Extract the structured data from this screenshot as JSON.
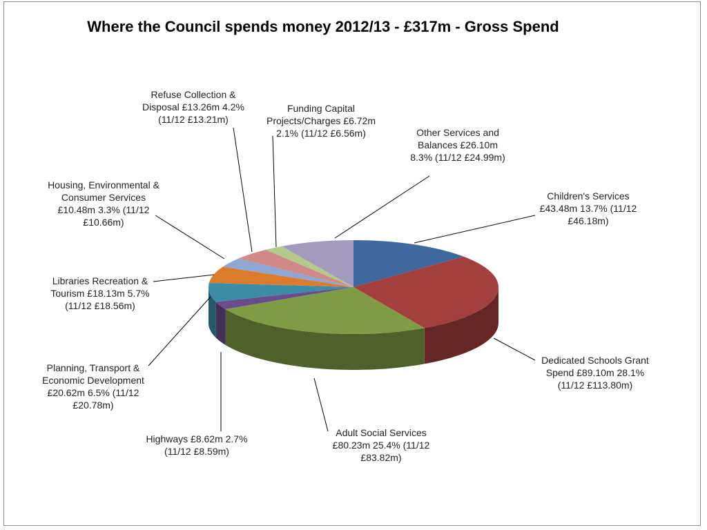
{
  "chart_data": {
    "type": "pie",
    "title": "Where the Council spends money 2012/13 - £317m - Gross Spend",
    "categories": [
      "Children's Services",
      "Dedicated Schools Grant Spend",
      "Adult Social Services",
      "Highways",
      "Planning, Transport & Economic Development",
      "Libraries Recreation & Tourism",
      "Housing, Environmental & Consumer Services",
      "Refuse Collection & Disposal",
      "Funding Capital Projects/Charges",
      "Other Services and Balances"
    ],
    "values": [
      43.48,
      89.1,
      80.23,
      8.62,
      20.62,
      18.13,
      10.48,
      13.26,
      6.72,
      26.1
    ],
    "value_labels": [
      "£43.48m",
      "£89.10m",
      "£80.23m",
      "£8.62m",
      "£20.62m",
      "£18.13m",
      "£10.48m",
      "£13.26m",
      "£6.72m",
      "£26.10m"
    ],
    "shares": [
      13.7,
      28.1,
      25.4,
      2.7,
      6.5,
      5.7,
      3.3,
      4.2,
      2.1,
      8.3
    ],
    "share_labels": [
      "13.7%",
      "28.1%",
      "25.4%",
      "2.7%",
      "6.5%",
      "5.7%",
      "3.3%",
      "4.2%",
      "2.1%",
      "8.3%"
    ],
    "previous_year": [
      46.18,
      113.8,
      83.82,
      8.59,
      20.78,
      18.56,
      10.66,
      13.21,
      6.56,
      24.99
    ],
    "previous_labels": [
      "(11/12 £46.18m)",
      "(11/12 £113.80m)",
      "(11/12 £83.82m)",
      "(11/12 £8.59m)",
      "(11/12 £20.78m)",
      "(11/12 £18.56m)",
      "(11/12 £10.66m)",
      "(11/12 £13.21m)",
      "(11/12 £6.56m)",
      "(11/12 £24.99m)"
    ],
    "colors": [
      "#41689c",
      "#a33f3c",
      "#7f9b45",
      "#6a4c8c",
      "#3b8ca8",
      "#dc7b2c",
      "#8ea6d1",
      "#cf8a88",
      "#b4ca8b",
      "#a39abe"
    ]
  }
}
